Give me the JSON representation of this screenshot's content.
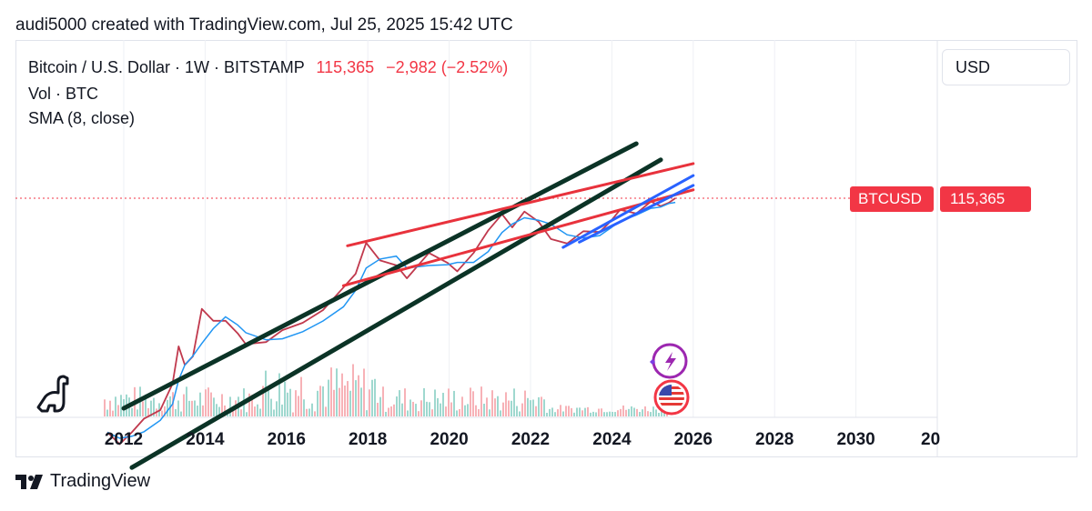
{
  "header": {
    "caption": "audi5000 created with TradingView.com, Jul 25, 2025 15:42 UTC"
  },
  "legend": {
    "symbol": "Bitcoin / U.S. Dollar · 1W · BITSTAMP",
    "price": "115,365",
    "change": "−2,982 (−2.52%)",
    "volume": "Vol · BTC",
    "sma": "SMA (8, close)"
  },
  "currency": "USD",
  "price_tag": {
    "symbol": "BTCUSD",
    "value": "115,365"
  },
  "footer": {
    "brand": "TradingView"
  },
  "colors": {
    "price_down": "#f23645",
    "channel_black": "#0b3326",
    "channel_red": "#e8323c",
    "channel_blue": "#2962ff",
    "sma": "#2196f3"
  },
  "icons": [
    "dino-logo-icon",
    "sparkle-lightning-icon",
    "us-flag-icon",
    "tradingview-logo-icon"
  ],
  "chart_data": {
    "type": "line",
    "title": "Bitcoin / U.S. Dollar · 1W · BITSTAMP",
    "x_ticks": [
      "2012",
      "2014",
      "2016",
      "2018",
      "2020",
      "2022",
      "2024",
      "2026",
      "2028",
      "2030",
      "20"
    ],
    "xlim": [
      2011.0,
      2032.0
    ],
    "y_scale": "log",
    "ylim": [
      1,
      1000000
    ],
    "last_price": 115365,
    "series": [
      {
        "values": [
          [
            2011.6,
            5
          ],
          [
            2011.9,
            3
          ],
          [
            2012.2,
            5
          ],
          [
            2012.5,
            9
          ],
          [
            2012.9,
            13
          ],
          [
            2013.2,
            40
          ],
          [
            2013.35,
            200
          ],
          [
            2013.5,
            90
          ],
          [
            2013.7,
            130
          ],
          [
            2013.92,
            1000
          ],
          [
            2014.2,
            600
          ],
          [
            2014.5,
            600
          ],
          [
            2014.8,
            350
          ],
          [
            2015.0,
            220
          ],
          [
            2015.5,
            240
          ],
          [
            2015.9,
            400
          ],
          [
            2016.4,
            550
          ],
          [
            2016.9,
            950
          ],
          [
            2017.4,
            2500
          ],
          [
            2017.7,
            4500
          ],
          [
            2017.96,
            17000
          ],
          [
            2018.3,
            8000
          ],
          [
            2018.7,
            6500
          ],
          [
            2018.96,
            3700
          ],
          [
            2019.5,
            11000
          ],
          [
            2019.96,
            7200
          ],
          [
            2020.2,
            5000
          ],
          [
            2020.6,
            11000
          ],
          [
            2020.96,
            29000
          ],
          [
            2021.3,
            58000
          ],
          [
            2021.55,
            33000
          ],
          [
            2021.85,
            65000
          ],
          [
            2022.2,
            42000
          ],
          [
            2022.5,
            20000
          ],
          [
            2022.9,
            16500
          ],
          [
            2023.3,
            28000
          ],
          [
            2023.7,
            27000
          ],
          [
            2023.96,
            42000
          ],
          [
            2024.2,
            70000
          ],
          [
            2024.6,
            60000
          ],
          [
            2024.96,
            100000
          ],
          [
            2025.2,
            82000
          ],
          [
            2025.4,
            95000
          ],
          [
            2025.56,
            115365
          ]
        ]
      }
    ],
    "trendlines": [
      {
        "color": "black",
        "points": [
          [
            2012.0,
            14
          ],
          [
            2024.6,
            1200000
          ]
        ]
      },
      {
        "color": "black",
        "points": [
          [
            2012.2,
            1.1
          ],
          [
            2025.2,
            600000
          ]
        ]
      },
      {
        "color": "red",
        "points": [
          [
            2017.5,
            15000
          ],
          [
            2026.0,
            510000
          ]
        ]
      },
      {
        "color": "red",
        "points": [
          [
            2017.4,
            2700
          ],
          [
            2026.0,
            165000
          ]
        ]
      },
      {
        "color": "blue",
        "points": [
          [
            2022.8,
            14000
          ],
          [
            2026.0,
            305000
          ]
        ]
      },
      {
        "color": "blue",
        "points": [
          [
            2023.2,
            17500
          ],
          [
            2026.0,
            200000
          ]
        ]
      }
    ]
  }
}
